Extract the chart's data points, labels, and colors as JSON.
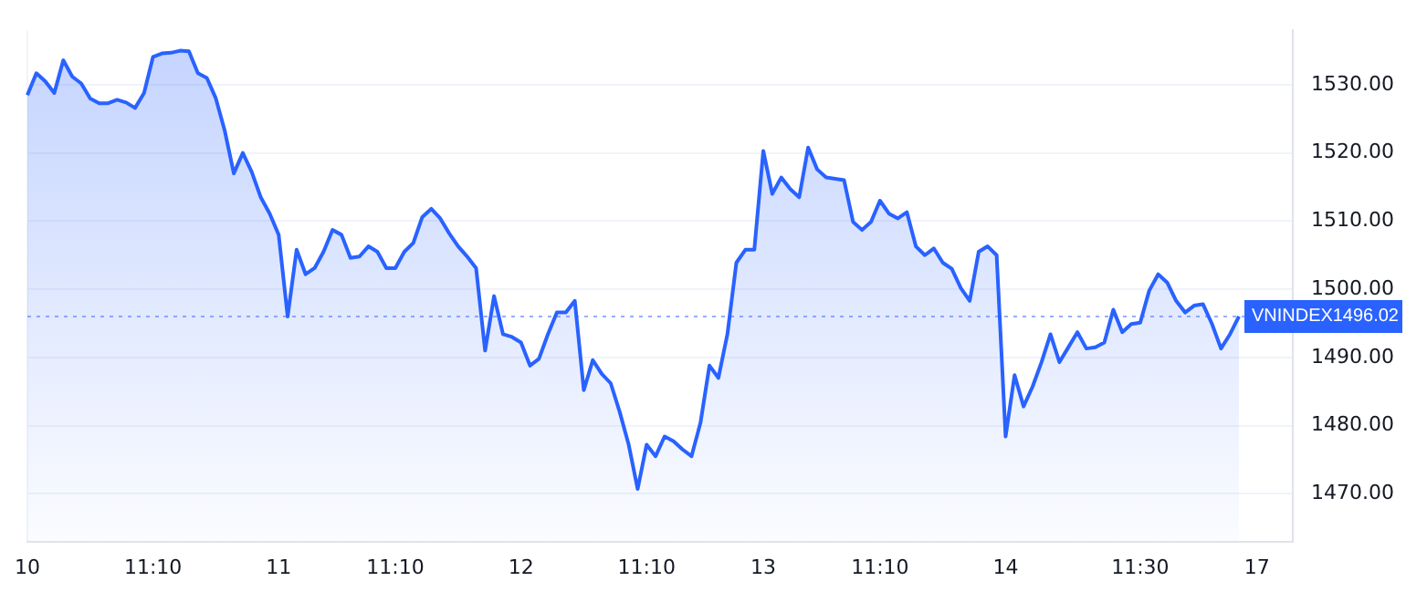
{
  "chart_data": {
    "type": "area",
    "categories": [
      "10",
      null,
      null,
      null,
      null,
      null,
      null,
      null,
      null,
      null,
      null,
      null,
      null,
      null,
      "11:10",
      null,
      null,
      null,
      null,
      null,
      null,
      null,
      null,
      null,
      null,
      null,
      null,
      null,
      "11",
      null,
      null,
      null,
      null,
      null,
      null,
      null,
      null,
      null,
      null,
      null,
      null,
      "11:10",
      null,
      null,
      null,
      null,
      null,
      null,
      null,
      null,
      null,
      null,
      null,
      null,
      null,
      "12",
      null,
      null,
      null,
      null,
      null,
      null,
      null,
      null,
      null,
      null,
      null,
      null,
      null,
      "11:10",
      null,
      null,
      null,
      null,
      null,
      null,
      null,
      null,
      null,
      null,
      null,
      null,
      "13",
      null,
      null,
      null,
      null,
      null,
      null,
      null,
      null,
      null,
      null,
      null,
      null,
      "11:10",
      null,
      null,
      null,
      null,
      null,
      null,
      null,
      null,
      null,
      null,
      null,
      null,
      null,
      "14",
      null,
      null,
      null,
      null,
      null,
      null,
      null,
      null,
      null,
      null,
      null,
      null,
      null,
      null,
      "11:30",
      null,
      null,
      null,
      null,
      null,
      null,
      null,
      null,
      null,
      null,
      null,
      null,
      "17",
      null,
      null,
      null,
      null
    ],
    "series": [
      {
        "name": "VNINDEX",
        "color": "#2962ff",
        "values": [
          1528.5,
          1531.7,
          1530.5,
          1528.8,
          1533.6,
          1531.2,
          1530.2,
          1528,
          1527.3,
          1527.3,
          1527.8,
          1527.4,
          1526.6,
          1528.8,
          1534.1,
          1534.6,
          1534.7,
          1535,
          1534.9,
          1531.7,
          1531,
          1528,
          1523.2,
          1517,
          1520,
          1517.2,
          1513.5,
          1511.1,
          1508,
          1496,
          1505.8,
          1502.2,
          1503.1,
          1505.5,
          1508.7,
          1508,
          1504.6,
          1504.8,
          1506.3,
          1505.5,
          1503.1,
          1503.1,
          1505.5,
          1506.8,
          1510.6,
          1511.8,
          1510.4,
          1508.2,
          1506.3,
          1504.8,
          1503.1,
          1491,
          1499,
          1493.4,
          1493,
          1492.2,
          1488.8,
          1489.8,
          1493.4,
          1496.6,
          1496.6,
          1498.3,
          1485.2,
          1489.6,
          1487.6,
          1486.2,
          1482,
          1477.2,
          1470.7,
          1477.2,
          1475.5,
          1478.4,
          1477.7,
          1476.5,
          1475.5,
          1480.4,
          1488.8,
          1487,
          1493.4,
          1503.9,
          1505.8,
          1505.8,
          1520.3,
          1514,
          1516.4,
          1514.7,
          1513.5,
          1520.8,
          1517.6,
          1516.4,
          1516.2,
          1516,
          1509.9,
          1508.7,
          1509.9,
          1513,
          1511.1,
          1510.4,
          1511.3,
          1506.3,
          1505,
          1506,
          1503.9,
          1503,
          1500.2,
          1498.3,
          1505.5,
          1506.3,
          1505,
          1478.4,
          1487.4,
          1482.8,
          1485.7,
          1489.3,
          1493.4,
          1489.3,
          1491.5,
          1493.7,
          1491.3,
          1491.5,
          1492.2,
          1497,
          1493.7,
          1494.9,
          1495.1,
          1499.8,
          1502.2,
          1501,
          1498.3,
          1496.6,
          1497.6,
          1497.8,
          1494.9,
          1491.3,
          1493.4,
          1496.02,
          null,
          null,
          null,
          null,
          null,
          null
        ]
      }
    ],
    "ylim": [
      1463,
      1538
    ],
    "yticks": [
      {
        "value": 1470,
        "label": "1470.00"
      },
      {
        "value": 1480,
        "label": "1480.00"
      },
      {
        "value": 1490,
        "label": "1490.00"
      },
      {
        "value": 1500,
        "label": "1500.00"
      },
      {
        "value": 1510,
        "label": "1510.00"
      },
      {
        "value": 1520,
        "label": "1520.00"
      },
      {
        "value": 1530,
        "label": "1530.00"
      }
    ],
    "ref_lines": [
      {
        "axis": "y",
        "value": 1496.02,
        "label": "1496.02",
        "color": "#2962ff",
        "line_style": "dotted"
      }
    ],
    "grid": true,
    "legend": false,
    "marker": "none",
    "line_style": "solid"
  }
}
